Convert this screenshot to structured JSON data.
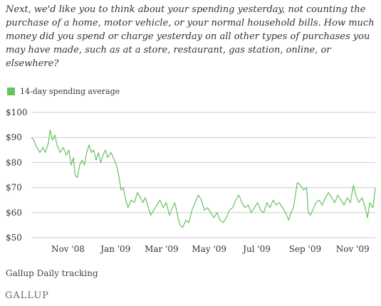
{
  "question": "Next, we'd like you to think about your spending yesterday, not counting the purchase of a home, motor vehicle, or your normal household bills. How much money did you spend or charge yesterday on all other types of purchases you may have made, such as at a store, restaurant, gas station, online, or elsewhere?",
  "source": "Gallup Daily tracking",
  "logo": "GALLUP",
  "colors": {
    "series": "#66c160",
    "grid": "#cccccc",
    "text": "#333333"
  },
  "chart_data": {
    "type": "line",
    "title": "",
    "xlabel": "",
    "ylabel": "",
    "ylim": [
      50,
      100
    ],
    "grid": true,
    "legend": "top-left",
    "y_ticks": [
      100,
      90,
      80,
      70,
      60,
      50
    ],
    "y_tick_labels": [
      "$100",
      "$90",
      "$80",
      "$70",
      "$60",
      "$50"
    ],
    "x_ticks": [
      "Nov '08",
      "Jan '09",
      "Mar '09",
      "May '09",
      "Jul '09",
      "Sep '09",
      "Nov '09"
    ],
    "x_range": [
      "2008-09-15",
      "2009-11-30"
    ],
    "series": [
      {
        "name": "14-day spending average",
        "points": [
          [
            "2008-09-15",
            90
          ],
          [
            "2008-09-18",
            89
          ],
          [
            "2008-09-22",
            86
          ],
          [
            "2008-09-26",
            84
          ],
          [
            "2008-09-30",
            86
          ],
          [
            "2008-10-03",
            84
          ],
          [
            "2008-10-07",
            88
          ],
          [
            "2008-10-09",
            93
          ],
          [
            "2008-10-12",
            89
          ],
          [
            "2008-10-15",
            91
          ],
          [
            "2008-10-18",
            87
          ],
          [
            "2008-10-22",
            84
          ],
          [
            "2008-10-26",
            86
          ],
          [
            "2008-10-30",
            83
          ],
          [
            "2008-11-02",
            85
          ],
          [
            "2008-11-05",
            79
          ],
          [
            "2008-11-08",
            82
          ],
          [
            "2008-11-10",
            75
          ],
          [
            "2008-11-13",
            74
          ],
          [
            "2008-11-16",
            79
          ],
          [
            "2008-11-19",
            81
          ],
          [
            "2008-11-22",
            79
          ],
          [
            "2008-11-25",
            84
          ],
          [
            "2008-11-28",
            87
          ],
          [
            "2008-12-01",
            84
          ],
          [
            "2008-12-04",
            85
          ],
          [
            "2008-12-07",
            81
          ],
          [
            "2008-12-10",
            84
          ],
          [
            "2008-12-13",
            80
          ],
          [
            "2008-12-16",
            83
          ],
          [
            "2008-12-19",
            85
          ],
          [
            "2008-12-22",
            82
          ],
          [
            "2008-12-26",
            84
          ],
          [
            "2008-12-29",
            82
          ],
          [
            "2009-01-02",
            79
          ],
          [
            "2009-01-05",
            75
          ],
          [
            "2009-01-08",
            69
          ],
          [
            "2009-01-11",
            70
          ],
          [
            "2009-01-14",
            65
          ],
          [
            "2009-01-17",
            62
          ],
          [
            "2009-01-21",
            65
          ],
          [
            "2009-01-25",
            64
          ],
          [
            "2009-01-29",
            68
          ],
          [
            "2009-02-02",
            66
          ],
          [
            "2009-02-05",
            64
          ],
          [
            "2009-02-08",
            66
          ],
          [
            "2009-02-12",
            62
          ],
          [
            "2009-02-15",
            59
          ],
          [
            "2009-02-19",
            61
          ],
          [
            "2009-02-23",
            63
          ],
          [
            "2009-02-27",
            65
          ],
          [
            "2009-03-03",
            62
          ],
          [
            "2009-03-07",
            64
          ],
          [
            "2009-03-11",
            59
          ],
          [
            "2009-03-15",
            62
          ],
          [
            "2009-03-18",
            64
          ],
          [
            "2009-03-22",
            58
          ],
          [
            "2009-03-25",
            55
          ],
          [
            "2009-03-28",
            54
          ],
          [
            "2009-04-01",
            57
          ],
          [
            "2009-04-05",
            56
          ],
          [
            "2009-04-09",
            61
          ],
          [
            "2009-04-13",
            64
          ],
          [
            "2009-04-17",
            67
          ],
          [
            "2009-04-21",
            65
          ],
          [
            "2009-04-25",
            61
          ],
          [
            "2009-04-29",
            62
          ],
          [
            "2009-05-03",
            60
          ],
          [
            "2009-05-07",
            58
          ],
          [
            "2009-05-11",
            60
          ],
          [
            "2009-05-15",
            57
          ],
          [
            "2009-05-19",
            56
          ],
          [
            "2009-05-23",
            58
          ],
          [
            "2009-05-27",
            61
          ],
          [
            "2009-05-31",
            62
          ],
          [
            "2009-06-04",
            65
          ],
          [
            "2009-06-08",
            67
          ],
          [
            "2009-06-12",
            64
          ],
          [
            "2009-06-16",
            62
          ],
          [
            "2009-06-20",
            63
          ],
          [
            "2009-06-24",
            60
          ],
          [
            "2009-06-28",
            62
          ],
          [
            "2009-07-02",
            64
          ],
          [
            "2009-07-06",
            61
          ],
          [
            "2009-07-10",
            60
          ],
          [
            "2009-07-14",
            64
          ],
          [
            "2009-07-18",
            62
          ],
          [
            "2009-07-22",
            65
          ],
          [
            "2009-07-26",
            63
          ],
          [
            "2009-07-30",
            64
          ],
          [
            "2009-08-03",
            62
          ],
          [
            "2009-08-07",
            60
          ],
          [
            "2009-08-11",
            57
          ],
          [
            "2009-08-14",
            60
          ],
          [
            "2009-08-17",
            62
          ],
          [
            "2009-08-20",
            68
          ],
          [
            "2009-08-22",
            72
          ],
          [
            "2009-08-26",
            71
          ],
          [
            "2009-08-30",
            69
          ],
          [
            "2009-09-03",
            70
          ],
          [
            "2009-09-05",
            60
          ],
          [
            "2009-09-08",
            59
          ],
          [
            "2009-09-12",
            62
          ],
          [
            "2009-09-15",
            64
          ],
          [
            "2009-09-19",
            65
          ],
          [
            "2009-09-23",
            63
          ],
          [
            "2009-09-27",
            66
          ],
          [
            "2009-10-01",
            68
          ],
          [
            "2009-10-05",
            66
          ],
          [
            "2009-10-09",
            64
          ],
          [
            "2009-10-13",
            67
          ],
          [
            "2009-10-17",
            65
          ],
          [
            "2009-10-21",
            63
          ],
          [
            "2009-10-25",
            66
          ],
          [
            "2009-10-29",
            64
          ],
          [
            "2009-11-02",
            71
          ],
          [
            "2009-11-05",
            67
          ],
          [
            "2009-11-09",
            64
          ],
          [
            "2009-11-13",
            66
          ],
          [
            "2009-11-17",
            62
          ],
          [
            "2009-11-20",
            58
          ],
          [
            "2009-11-23",
            64
          ],
          [
            "2009-11-27",
            62
          ],
          [
            "2009-11-30",
            70
          ]
        ]
      }
    ]
  }
}
